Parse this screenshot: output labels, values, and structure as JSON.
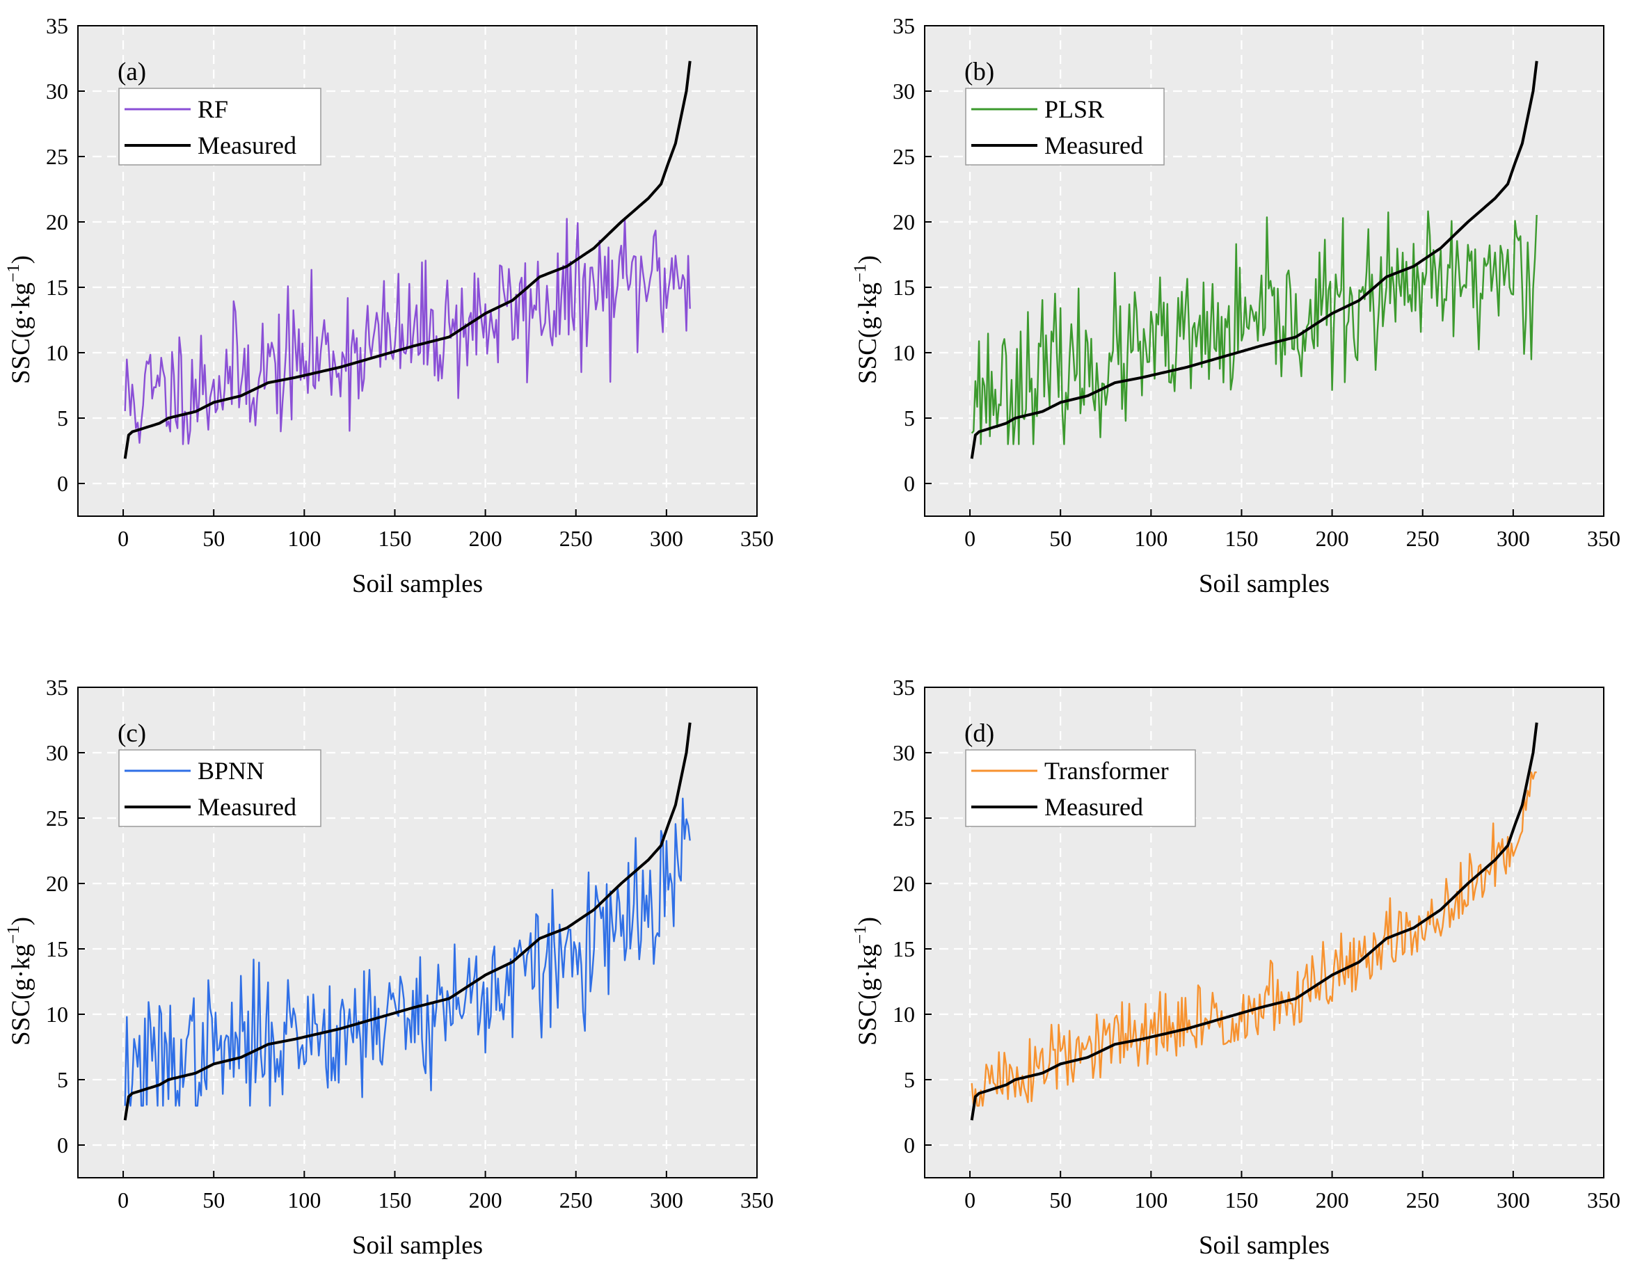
{
  "chart_data": [
    {
      "type": "line",
      "panel_label": "(a)",
      "xlabel": "Soil samples",
      "ylabel_main": "SSC(g·kg",
      "ylabel_sup": "−1",
      "ylabel_close": ")",
      "xlim": [
        -25,
        350
      ],
      "ylim": [
        -2.5,
        35
      ],
      "xticks": [
        "0",
        "50",
        "100",
        "150",
        "200",
        "250",
        "300",
        "350"
      ],
      "yticks": [
        "0",
        "5",
        "10",
        "15",
        "20",
        "25",
        "30",
        "35"
      ],
      "legend": [
        {
          "name": "RF",
          "color": "#8a4fd6"
        },
        {
          "name": "Measured",
          "color": "#000000"
        }
      ],
      "series": [
        {
          "name": "RF",
          "color": "#8a4fd6",
          "n": 313,
          "seed": 11,
          "noise_sd": 2.5,
          "model": "rf"
        },
        {
          "name": "Measured",
          "color": "#000000",
          "n": 313,
          "curve": "measured"
        }
      ]
    },
    {
      "type": "line",
      "panel_label": "(b)",
      "xlabel": "Soil samples",
      "ylabel_main": "SSC(g·kg",
      "ylabel_sup": "−1",
      "ylabel_close": ")",
      "xlim": [
        -25,
        350
      ],
      "ylim": [
        -2.5,
        35
      ],
      "xticks": [
        "0",
        "50",
        "100",
        "150",
        "200",
        "250",
        "300",
        "350"
      ],
      "yticks": [
        "0",
        "5",
        "10",
        "15",
        "20",
        "25",
        "30",
        "35"
      ],
      "legend": [
        {
          "name": "PLSR",
          "color": "#3c9a2e"
        },
        {
          "name": "Measured",
          "color": "#000000"
        }
      ],
      "series": [
        {
          "name": "PLSR",
          "color": "#3c9a2e",
          "n": 313,
          "seed": 23,
          "noise_sd": 2.7,
          "model": "plsr"
        },
        {
          "name": "Measured",
          "color": "#000000",
          "n": 313,
          "curve": "measured"
        }
      ]
    },
    {
      "type": "line",
      "panel_label": "(c)",
      "xlabel": "Soil samples",
      "ylabel_main": "SSC(g·kg",
      "ylabel_sup": "−1",
      "ylabel_close": ")",
      "xlim": [
        -25,
        350
      ],
      "ylim": [
        -2.5,
        35
      ],
      "xticks": [
        "0",
        "50",
        "100",
        "150",
        "200",
        "250",
        "300",
        "350"
      ],
      "yticks": [
        "0",
        "5",
        "10",
        "15",
        "20",
        "25",
        "30",
        "35"
      ],
      "legend": [
        {
          "name": "BPNN",
          "color": "#2f6fe6"
        },
        {
          "name": "Measured",
          "color": "#000000"
        }
      ],
      "series": [
        {
          "name": "BPNN",
          "color": "#2f6fe6",
          "n": 313,
          "seed": 37,
          "noise_sd": 2.6,
          "model": "bpnn"
        },
        {
          "name": "Measured",
          "color": "#000000",
          "n": 313,
          "curve": "measured"
        }
      ]
    },
    {
      "type": "line",
      "panel_label": "(d)",
      "xlabel": "Soil samples",
      "ylabel_main": "SSC(g·kg",
      "ylabel_sup": "−1",
      "ylabel_close": ")",
      "xlim": [
        -25,
        350
      ],
      "ylim": [
        -2.5,
        35
      ],
      "xticks": [
        "0",
        "50",
        "100",
        "150",
        "200",
        "250",
        "300",
        "350"
      ],
      "yticks": [
        "0",
        "5",
        "10",
        "15",
        "20",
        "25",
        "30",
        "35"
      ],
      "legend": [
        {
          "name": "Transformer",
          "color": "#f7922f"
        },
        {
          "name": "Measured",
          "color": "#000000"
        }
      ],
      "series": [
        {
          "name": "Transformer",
          "color": "#f7922f",
          "n": 313,
          "seed": 51,
          "noise_sd": 1.6,
          "model": "transformer"
        },
        {
          "name": "Measured",
          "color": "#000000",
          "n": 313,
          "curve": "measured"
        }
      ]
    }
  ]
}
